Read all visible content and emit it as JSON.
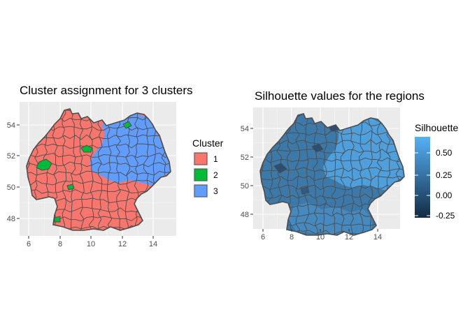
{
  "left_plot": {
    "title": "Cluster assignment for 3 clusters",
    "x_ticks": [
      "6",
      "8",
      "10",
      "12",
      "14"
    ],
    "y_ticks": [
      "54",
      "52",
      "50",
      "48"
    ],
    "legend": {
      "title": "Cluster",
      "items": [
        {
          "label": "1",
          "color": "#F8766D"
        },
        {
          "label": "2",
          "color": "#00BA38"
        },
        {
          "label": "3",
          "color": "#619CFF"
        }
      ]
    }
  },
  "right_plot": {
    "title": "Silhouette values for the regions",
    "x_ticks": [
      "6",
      "8",
      "10",
      "12",
      "14"
    ],
    "y_ticks": [
      "54",
      "52",
      "50",
      "48"
    ],
    "legend": {
      "title": "Silhouette",
      "labels": [
        "0.50",
        "0.25",
        "0.00",
        "-0.25"
      ],
      "color_low": "#132B43",
      "color_high": "#56B1F7"
    }
  },
  "panel_background": "#EBEBEB",
  "border_color": "#4D4D4D"
}
